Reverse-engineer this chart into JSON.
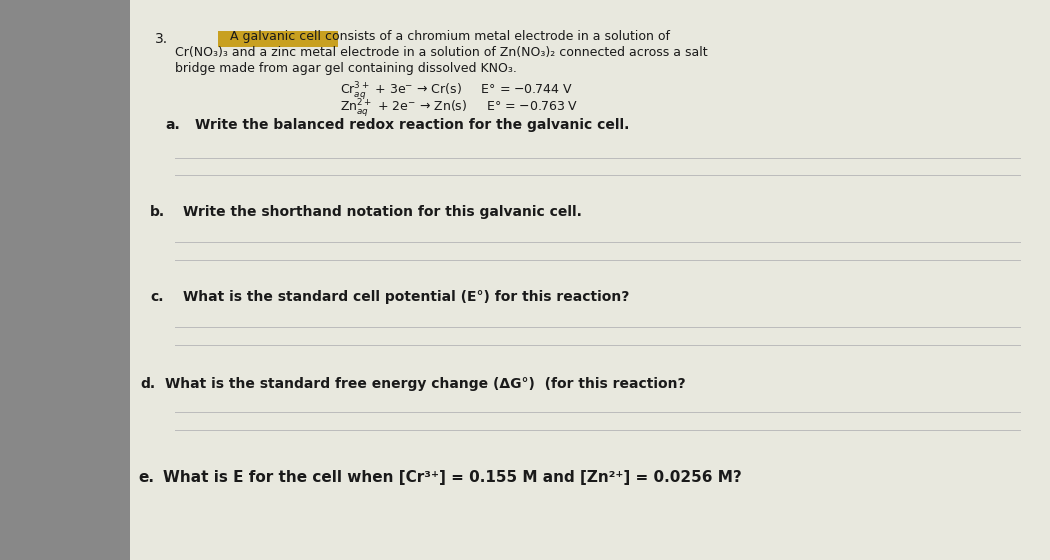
{
  "background_color": "#888888",
  "paper_color": "#e8e8de",
  "highlight_color": "#c8a020",
  "text_color": "#1a1a1a",
  "answer_line_color": "#bbbbbb",
  "number": "3.",
  "intro_line1": "A galvanic cell consists of a chromium metal electrode in a solution of",
  "intro_line2": "Cr(NO₃)₃ and a zinc metal electrode in a solution of Zn(NO₃)₂ connected across a salt",
  "intro_line3": "bridge made from agar gel containing dissolved KNO₃.",
  "rxn1_text": "Cr$_{aq}^{3+}$ + 3e$^{-}$ → Cr(s)     E° = −0.744 V",
  "rxn2_text": "Zn$_{aq}^{2+}$ + 2e$^{-}$ → Zn(s)     E° = −0.763 V",
  "part_a_label": "a.",
  "part_a_text": "Write the balanced redox reaction for the galvanic cell.",
  "part_b_label": "b.",
  "part_b_text": "Write the shorthand notation for this galvanic cell.",
  "part_c_label": "c.",
  "part_c_text": "What is the standard cell potential (E°) for this reaction?",
  "part_d_label": "d.",
  "part_d_text": "What is the standard free energy change (ΔG°)  (for this reaction?",
  "part_e_label": "e.",
  "part_e_text": "What is E for the cell when [Cr³⁺] = 0.155 M and [Zn²⁺] = 0.0256 M?"
}
